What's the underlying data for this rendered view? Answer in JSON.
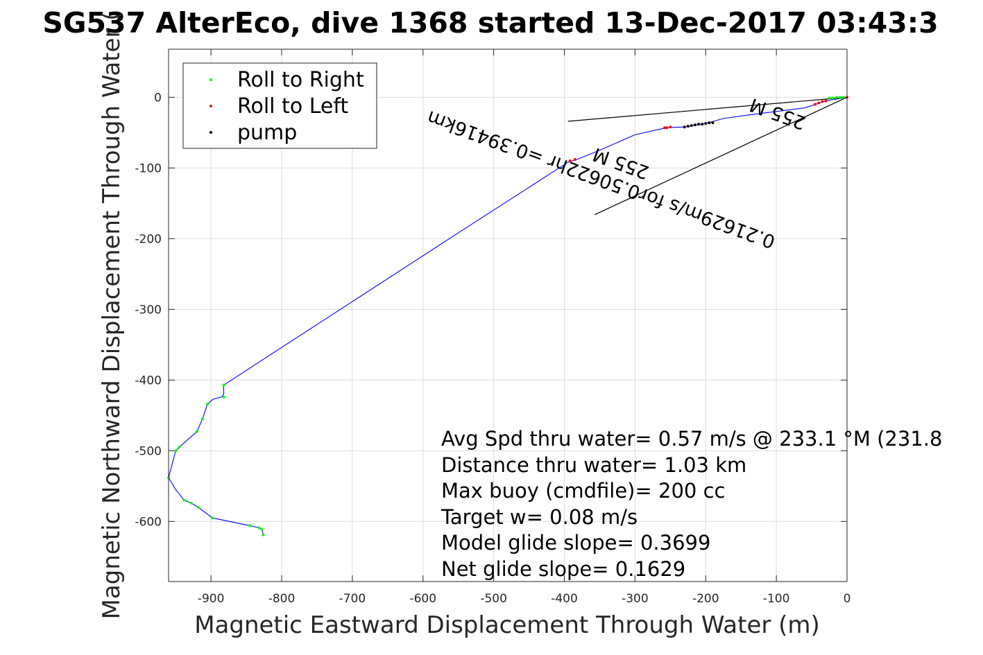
{
  "chart_data": {
    "type": "line",
    "title": "SG537 AlterEco, dive 1368 started 13-Dec-2017 03:43:3",
    "xlabel": "Magnetic Eastward Displacement Through Water (m)",
    "ylabel": "Magnetic Northward Displacement Through Water (",
    "xlim": [
      -960,
      0
    ],
    "ylim": [
      -685,
      68
    ],
    "xticks": [
      -900,
      -800,
      -700,
      -600,
      -500,
      -400,
      -300,
      -200,
      -100,
      0
    ],
    "yticks": [
      0,
      -100,
      -200,
      -300,
      -400,
      -500,
      -600
    ],
    "xtick_labels": [
      "-900",
      "-800",
      "-700",
      "-600",
      "-500",
      "-400",
      "-300",
      "-200",
      "-100",
      "0"
    ],
    "ytick_labels": [
      "0",
      "-100",
      "-200",
      "-300",
      "-400",
      "-500",
      "-600"
    ],
    "grid": true,
    "legend": {
      "placement": "top-left",
      "entries": [
        {
          "label": "Roll to Right",
          "color": "#00ff00"
        },
        {
          "label": "Roll to Left",
          "color": "#ff0000"
        },
        {
          "label": "pump",
          "color": "#000000"
        }
      ]
    },
    "series": [
      {
        "color": "#0000ff",
        "x": [
          0,
          -30,
          -60,
          -100,
          -140,
          -175,
          -200,
          -230,
          -255,
          -300,
          -350,
          -380,
          -395,
          -555,
          -882,
          -882,
          -885,
          -897,
          -905,
          -912,
          -920,
          -945,
          -950,
          -960,
          -950,
          -938,
          -928,
          -918,
          -898,
          -845,
          -832,
          -828,
          -826
        ],
        "y": [
          0,
          -5,
          -15,
          -20,
          -25,
          -30,
          -37,
          -42,
          -43,
          -53,
          -75,
          -87,
          -92,
          -195,
          -407,
          -420,
          -424,
          -427,
          -434,
          -455,
          -473,
          -495,
          -500,
          -538,
          -555,
          -570,
          -574,
          -580,
          -595,
          -606,
          -609,
          -611,
          -619
        ]
      }
    ],
    "roll_right_points": {
      "x": [
        -5,
        -10,
        -15,
        -20,
        -25,
        -882,
        -882,
        -905,
        -912,
        -920,
        -945,
        -950,
        -960,
        -938,
        -928,
        -918,
        -898,
        -845,
        -832,
        -828,
        -826
      ],
      "y": [
        0,
        0,
        0,
        -1,
        -1,
        -407,
        -424,
        -434,
        -455,
        -473,
        -495,
        -500,
        -538,
        -570,
        -574,
        -580,
        -595,
        -606,
        -609,
        -611,
        -619
      ]
    },
    "roll_left_points": {
      "x": [
        0,
        -30,
        -35,
        -40,
        -45,
        -250,
        -255,
        -258,
        -385,
        -392
      ],
      "y": [
        0,
        -5,
        -6,
        -8,
        -10,
        -42,
        -43,
        -43,
        -88,
        -90
      ]
    },
    "pump_points": {
      "x": [
        -230,
        -225,
        -220,
        -215,
        -210,
        -205,
        -200,
        -195,
        -190
      ],
      "y": [
        -42,
        -41,
        -40,
        -39,
        -38,
        -38,
        -37,
        -36,
        -36
      ]
    },
    "reference_lines": [
      {
        "x": [
          0,
          -395
        ],
        "y": [
          0,
          -34
        ]
      },
      {
        "x": [
          0,
          -357
        ],
        "y": [
          0,
          -166
        ]
      }
    ],
    "annotations": [
      {
        "text": "0.21629m/s for0.50622hr =0.39416km",
        "x": -345,
        "y": -108,
        "rotation_deg": 200
      },
      {
        "text": "255 M",
        "x": -317,
        "y": -85,
        "rotation_deg": 200
      },
      {
        "text": "255 M",
        "x": -95,
        "y": -15,
        "rotation_deg": 200
      }
    ],
    "stats_text": [
      "Avg Spd thru water=  0.57 m/s @ 233.1 °M (231.8",
      "Distance thru water=  1.03 km",
      "Max buoy (cmdfile)= 200 cc",
      "Target w= 0.08 m/s",
      "Model glide slope= 0.3699",
      "Net glide slope= 0.1629"
    ]
  }
}
